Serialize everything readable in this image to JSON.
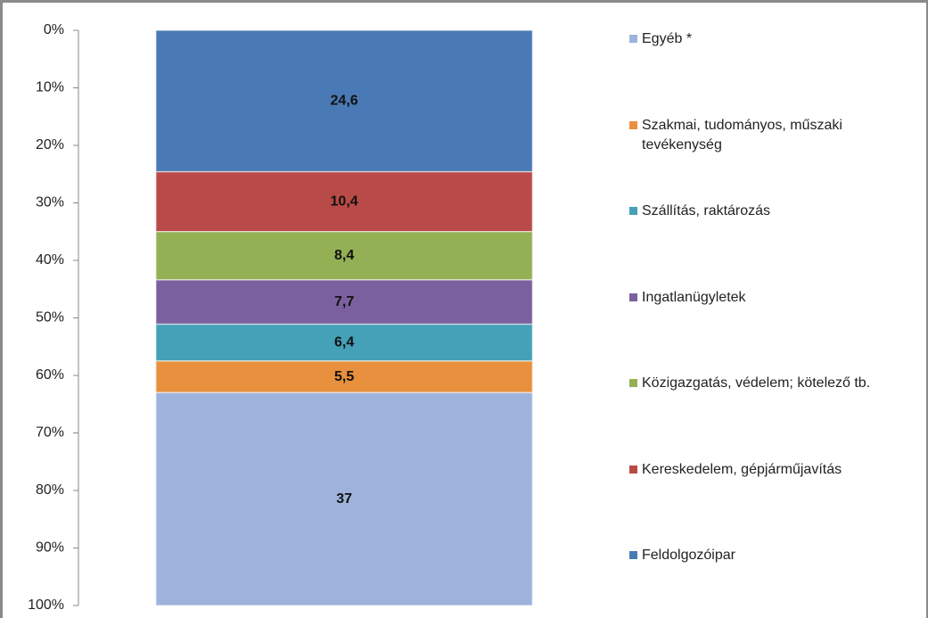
{
  "chart_data": {
    "type": "stacked_bar",
    "categories": [
      null
    ],
    "y_inverted": true,
    "ylim": [
      0,
      100
    ],
    "yticks": [
      {
        "value": 0,
        "label": "0%"
      },
      {
        "value": 10,
        "label": "10%"
      },
      {
        "value": 20,
        "label": "20%"
      },
      {
        "value": 30,
        "label": "30%"
      },
      {
        "value": 40,
        "label": "40%"
      },
      {
        "value": 50,
        "label": "50%"
      },
      {
        "value": 60,
        "label": "60%"
      },
      {
        "value": 70,
        "label": "70%"
      },
      {
        "value": 80,
        "label": "80%"
      },
      {
        "value": 90,
        "label": "90%"
      },
      {
        "value": 100,
        "label": "100%"
      }
    ],
    "legend": "right",
    "series": [
      {
        "name": "Feldolgozóipar",
        "color": "#4a7ab5",
        "values": [
          24.6
        ],
        "value_labels": [
          "24,6"
        ]
      },
      {
        "name": "Kereskedelem, gépjárműjavítás",
        "color": "#b84a48",
        "values": [
          10.4
        ],
        "value_labels": [
          "10,4"
        ]
      },
      {
        "name": "Közigazgatás, védelem; kötelező tb.",
        "color": "#94b055",
        "values": [
          8.4
        ],
        "value_labels": [
          "8,4"
        ]
      },
      {
        "name": "Ingatlanügyletek",
        "color": "#7b609f",
        "values": [
          7.7
        ],
        "value_labels": [
          "7,7"
        ]
      },
      {
        "name": "Szállítás, raktározás",
        "color": "#45a1b8",
        "values": [
          6.4
        ],
        "value_labels": [
          "6,4"
        ]
      },
      {
        "name": "Szakmai, tudományos, műszaki tevékenység",
        "color": "#e8903e",
        "values": [
          5.5
        ],
        "value_labels": [
          "5,5"
        ]
      },
      {
        "name": "Egyéb *",
        "color": "#9eb3dc",
        "values": [
          37
        ],
        "value_labels": [
          "37"
        ]
      }
    ]
  }
}
